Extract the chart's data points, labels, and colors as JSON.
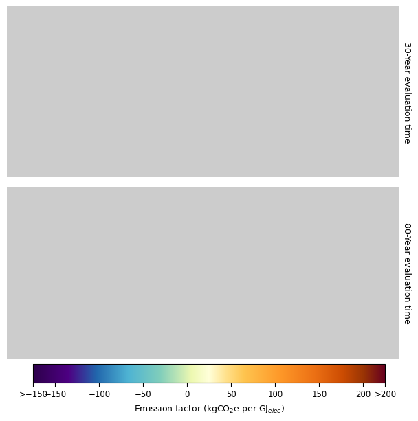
{
  "title_30": "30-Year evaluation time",
  "title_80": "80-Year evaluation time",
  "colorbar_label": "Emission factor (kgCO₂e per GJₑₗₑᶜ)",
  "tick_labels": [
    ">−150",
    "−150",
    "−100",
    "−50",
    "0",
    "50",
    "100",
    "150",
    "200",
    ">200"
  ],
  "tick_values": [
    -175,
    -150,
    -100,
    -50,
    0,
    50,
    100,
    150,
    200,
    225
  ],
  "vmin": -175,
  "vmax": 225,
  "colorbar_colors": [
    "#2d004b",
    "#4a006e",
    "#6a00a8",
    "#5e4fa2",
    "#3288bd",
    "#66c2a5",
    "#abdda4",
    "#e6f598",
    "#ffffbf",
    "#fee090",
    "#fdae61",
    "#f46d43",
    "#d73027",
    "#a50026",
    "#67001f"
  ],
  "background_color": "#f0f0f0",
  "map_background": "#d0d0d0",
  "fig_bg": "#ffffff"
}
